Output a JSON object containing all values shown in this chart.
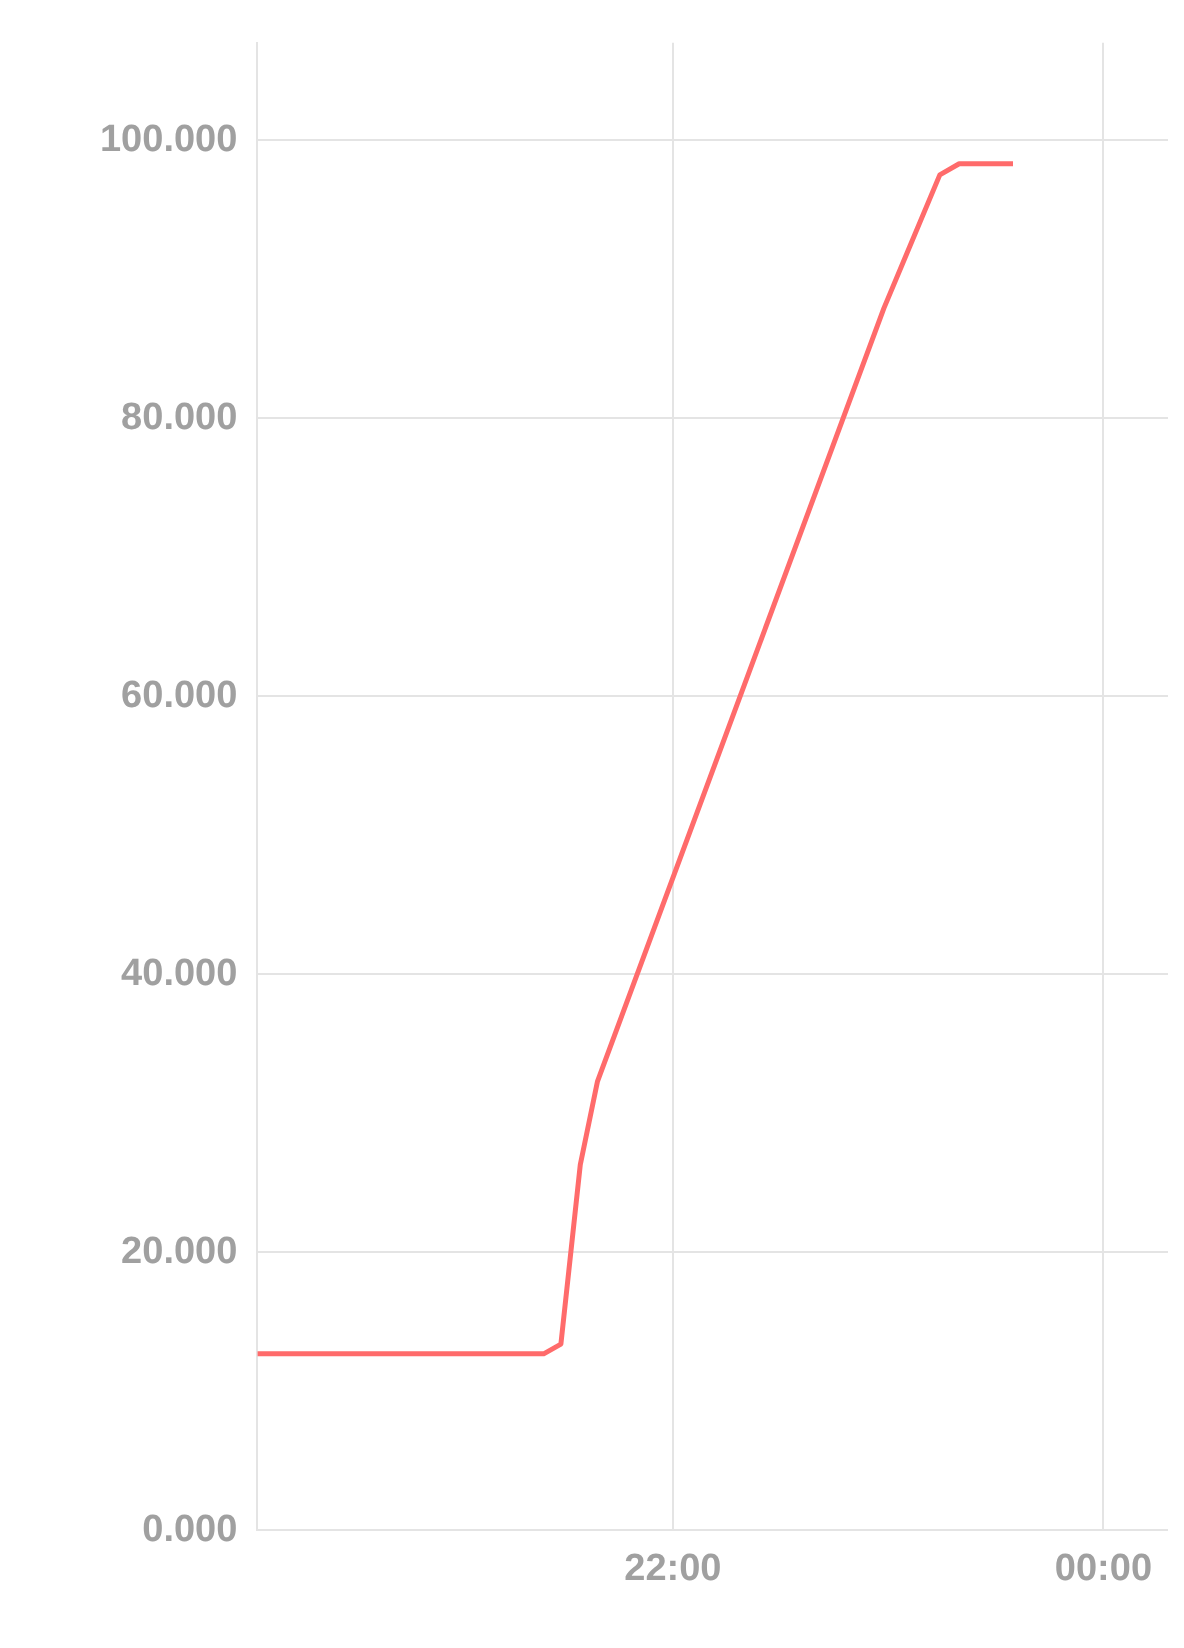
{
  "chart_data": {
    "type": "line",
    "x": [
      20.07,
      21.4,
      21.48,
      21.57,
      21.65,
      22.98,
      23.24,
      23.33,
      23.58
    ],
    "series": [
      {
        "color": "#ff6b6b",
        "values": [
          12.7,
          12.7,
          13.4,
          26.3,
          32.3,
          87.9,
          97.5,
          98.3,
          98.3
        ]
      }
    ],
    "xlim": [
      20.07,
      24.3
    ],
    "xticks": [
      {
        "value": 22,
        "label": "22:00"
      },
      {
        "value": 24,
        "label": "00:00"
      }
    ],
    "ylim": [
      0,
      107
    ],
    "yticks": [
      {
        "value": 0,
        "label": "0.000"
      },
      {
        "value": 20,
        "label": "20.000"
      },
      {
        "value": 40,
        "label": "40.000"
      },
      {
        "value": 60,
        "label": "60.000"
      },
      {
        "value": 80,
        "label": "80.000"
      },
      {
        "value": 100,
        "label": "100.000"
      }
    ],
    "grid": true,
    "legend": false,
    "marker": "none",
    "line_style": "solid"
  }
}
